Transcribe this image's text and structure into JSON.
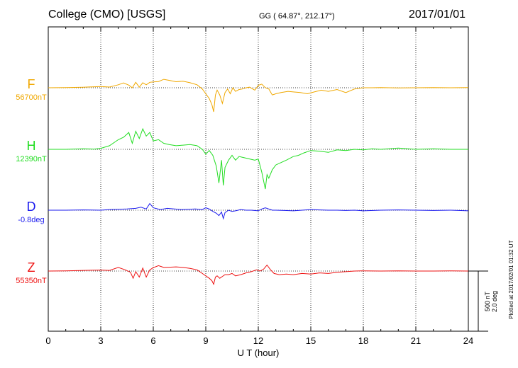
{
  "header": {
    "station": "College (CMO)  [USGS]",
    "coords": "GG ( 64.87°, 212.17°)",
    "date": "2017/01/01"
  },
  "chart_data": {
    "type": "line",
    "xlabel": "U T (hour)",
    "xlim": [
      0,
      24
    ],
    "xticks": [
      "0",
      "3",
      "6",
      "9",
      "12",
      "15",
      "18",
      "21",
      "24"
    ],
    "grid": "dotted",
    "scale_note": [
      "500 nT",
      "2.0 deg"
    ],
    "plotted_note": "Plotted at 2017/02/01 01:32 UT",
    "series": [
      {
        "name": "F",
        "baseline_label": "56700nT",
        "color": "#f0a800",
        "baseline_value": 56700,
        "unit": "nT",
        "x": [
          0,
          1,
          2,
          3,
          3.5,
          4,
          4.3,
          4.6,
          4.8,
          5,
          5.2,
          5.4,
          5.6,
          5.8,
          6,
          6.3,
          6.6,
          6.9,
          7.3,
          7.7,
          8.1,
          8.5,
          8.8,
          9,
          9.2,
          9.35,
          9.45,
          9.55,
          9.65,
          9.8,
          9.95,
          10.1,
          10.25,
          10.4,
          10.55,
          10.7,
          10.9,
          11.1,
          11.3,
          11.5,
          11.8,
          12,
          12.2,
          12.4,
          12.6,
          12.8,
          13,
          13.3,
          13.7,
          14,
          14.4,
          14.8,
          15.2,
          15.6,
          16,
          16.5,
          17,
          17.5,
          18,
          18.5,
          19,
          20,
          21,
          22,
          23,
          24
        ],
        "y": [
          56700,
          56702,
          56705,
          56710,
          56706,
          56725,
          56740,
          56722,
          56700,
          56745,
          56705,
          56742,
          56725,
          56745,
          56748,
          56752,
          56770,
          56762,
          56750,
          56755,
          56742,
          56725,
          56690,
          56650,
          56610,
          56560,
          56500,
          56640,
          56680,
          56640,
          56570,
          56660,
          56690,
          56650,
          56700,
          56670,
          56685,
          56690,
          56700,
          56705,
          56680,
          56720,
          56730,
          56700,
          56690,
          56640,
          56650,
          56660,
          56670,
          56665,
          56660,
          56650,
          56665,
          56680,
          56670,
          56685,
          56660,
          56690,
          56700,
          56700,
          56702,
          56698,
          56700,
          56702,
          56700,
          56702
        ]
      },
      {
        "name": "H",
        "baseline_label": "12390nT",
        "color": "#22dd22",
        "baseline_value": 12390,
        "unit": "nT",
        "x": [
          0,
          1,
          2,
          2.6,
          3,
          3.5,
          4,
          4.3,
          4.6,
          4.8,
          5,
          5.2,
          5.4,
          5.6,
          5.8,
          6,
          6.3,
          6.6,
          6.9,
          7.3,
          7.7,
          8.1,
          8.5,
          8.8,
          9,
          9.2,
          9.4,
          9.6,
          9.75,
          9.9,
          10,
          10.1,
          10.3,
          10.5,
          10.7,
          10.9,
          11.2,
          11.5,
          11.8,
          12,
          12.2,
          12.4,
          12.5,
          12.6,
          12.8,
          13,
          13.3,
          13.6,
          14,
          14.3,
          14.6,
          15,
          15.5,
          16,
          16.5,
          17,
          17.5,
          18,
          18.5,
          19,
          20,
          21,
          22,
          23,
          24
        ],
        "y": [
          12390,
          12390,
          12395,
          12392,
          12398,
          12420,
          12470,
          12490,
          12530,
          12440,
          12540,
          12480,
          12560,
          12500,
          12530,
          12460,
          12470,
          12440,
          12430,
          12420,
          12425,
          12430,
          12420,
          12390,
          12350,
          12380,
          12340,
          12250,
          12110,
          12300,
          12090,
          12240,
          12300,
          12340,
          12300,
          12330,
          12320,
          12310,
          12300,
          12310,
          12200,
          12060,
          12180,
          12150,
          12220,
          12260,
          12280,
          12300,
          12330,
          12340,
          12360,
          12380,
          12375,
          12365,
          12385,
          12380,
          12390,
          12385,
          12395,
          12390,
          12400,
          12390,
          12395,
          12390,
          12390
        ]
      },
      {
        "name": "D",
        "baseline_label": "-0.8deg",
        "color": "#1a1aee",
        "baseline_value": -0.8,
        "unit": "deg",
        "x": [
          0,
          1,
          2,
          3,
          3.5,
          4,
          4.5,
          5,
          5.3,
          5.6,
          5.8,
          6,
          6.4,
          6.8,
          7.2,
          7.6,
          8,
          8.4,
          8.8,
          9,
          9.2,
          9.4,
          9.6,
          9.75,
          9.9,
          10,
          10.1,
          10.3,
          10.5,
          10.7,
          11,
          11.3,
          11.6,
          12,
          12.2,
          12.4,
          12.6,
          12.8,
          13,
          13.5,
          14,
          14.5,
          15,
          15.5,
          16,
          16.5,
          17,
          17.5,
          18,
          19,
          20,
          21,
          22,
          23,
          24
        ],
        "y": [
          -0.8,
          -0.8,
          -0.79,
          -0.8,
          -0.78,
          -0.77,
          -0.76,
          -0.74,
          -0.7,
          -0.76,
          -0.58,
          -0.72,
          -0.78,
          -0.74,
          -0.76,
          -0.78,
          -0.77,
          -0.76,
          -0.78,
          -0.72,
          -0.76,
          -0.84,
          -0.9,
          -0.98,
          -0.86,
          -1.08,
          -0.88,
          -0.8,
          -0.84,
          -0.82,
          -0.78,
          -0.8,
          -0.8,
          -0.82,
          -0.76,
          -0.72,
          -0.76,
          -0.8,
          -0.8,
          -0.81,
          -0.82,
          -0.8,
          -0.78,
          -0.79,
          -0.8,
          -0.8,
          -0.81,
          -0.8,
          -0.82,
          -0.8,
          -0.79,
          -0.8,
          -0.81,
          -0.8,
          -0.82
        ]
      },
      {
        "name": "Z",
        "baseline_label": "55350nT",
        "color": "#ee1111",
        "baseline_value": 55350,
        "unit": "nT",
        "x": [
          0,
          1,
          2,
          3,
          3.5,
          4,
          4.4,
          4.7,
          4.85,
          5,
          5.2,
          5.4,
          5.6,
          5.8,
          6,
          6.3,
          6.6,
          6.9,
          7.3,
          7.7,
          8.1,
          8.5,
          8.8,
          9,
          9.2,
          9.35,
          9.45,
          9.55,
          9.65,
          9.8,
          9.95,
          10.1,
          10.3,
          10.5,
          10.7,
          11,
          11.3,
          11.6,
          11.9,
          12.1,
          12.3,
          12.5,
          12.7,
          12.9,
          13.2,
          13.6,
          14,
          14.5,
          15,
          15.5,
          16,
          16.5,
          17,
          17.5,
          18,
          19,
          20,
          21,
          22,
          23,
          24
        ],
        "y": [
          55350,
          55352,
          55355,
          55358,
          55355,
          55380,
          55360,
          55340,
          55290,
          55345,
          55300,
          55375,
          55300,
          55360,
          55378,
          55395,
          55380,
          55382,
          55385,
          55380,
          55372,
          55360,
          55330,
          55310,
          55290,
          55270,
          55240,
          55300,
          55310,
          55290,
          55305,
          55320,
          55320,
          55330,
          55310,
          55320,
          55335,
          55345,
          55360,
          55350,
          55365,
          55400,
          55360,
          55330,
          55320,
          55325,
          55320,
          55330,
          55325,
          55335,
          55330,
          55340,
          55345,
          55350,
          55352,
          55350,
          55352,
          55350,
          55350,
          55352,
          55350
        ]
      }
    ]
  }
}
